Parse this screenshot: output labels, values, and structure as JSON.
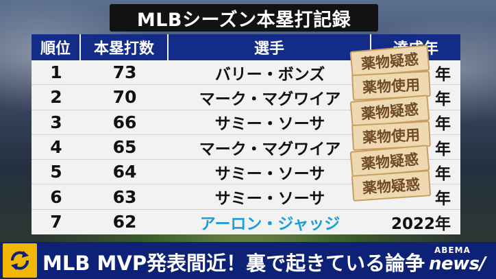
{
  "title": "MLBシーズン本塁打記録",
  "table": {
    "headers": [
      "順位",
      "本塁打数",
      "選手",
      "達成年"
    ],
    "rows": [
      {
        "rank": "1",
        "hr": "73",
        "player": "バリー・ボンズ",
        "year": "年",
        "stamp": "薬物疑惑"
      },
      {
        "rank": "2",
        "hr": "70",
        "player": "マーク・マグワイア",
        "year": "年",
        "stamp": "薬物使用"
      },
      {
        "rank": "3",
        "hr": "66",
        "player": "サミー・ソーサ",
        "year": "年",
        "stamp": "薬物疑惑"
      },
      {
        "rank": "4",
        "hr": "65",
        "player": "マーク・マグワイア",
        "year": "年",
        "stamp": "薬物使用"
      },
      {
        "rank": "5",
        "hr": "64",
        "player": "サミー・ソーサ",
        "year": "年",
        "stamp": "薬物疑惑"
      },
      {
        "rank": "6",
        "hr": "63",
        "player": "サミー・ソーサ",
        "year": "年",
        "stamp": "薬物疑惑"
      },
      {
        "rank": "7",
        "hr": "62",
        "player": "アーロン・ジャッジ",
        "year": "2022年",
        "stamp": ""
      }
    ]
  },
  "caption": "MLB MVP発表間近！裏で起きている論争",
  "logo": {
    "top": "ABEMA",
    "main": "news/"
  },
  "colors": {
    "header_blue": "#132c88",
    "highlight": "#1aa0d8",
    "stamp_bg": "#efd9b3",
    "caption_bar": "#0d2277",
    "icon_yellow": "#f2b705"
  }
}
